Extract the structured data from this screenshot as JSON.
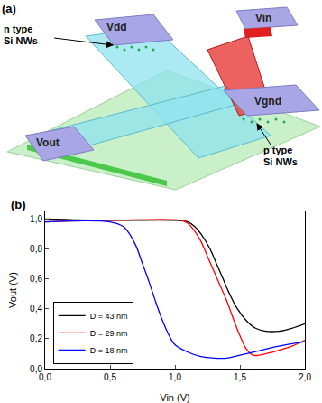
{
  "diagram": {
    "panel_label": "(a)",
    "terminals": [
      "Vdd",
      "Vin",
      "Vgnd",
      "Vout"
    ],
    "n_label": [
      "n type",
      "Si NWs"
    ],
    "p_label": [
      "p type",
      "Si NWs"
    ]
  },
  "chart_data": {
    "type": "line",
    "panel_label": "(b)",
    "x_label": "Vin (V)",
    "y_label": "Vout (V)",
    "xlim": [
      0,
      2.0
    ],
    "ylim": [
      0,
      1.05
    ],
    "xticks": [
      {
        "value": 0,
        "label": "0,0"
      },
      {
        "value": 0.5,
        "label": "0,5"
      },
      {
        "value": 1.0,
        "label": "1,0"
      },
      {
        "value": 1.5,
        "label": "1,5"
      },
      {
        "value": 2.0,
        "label": "2,0"
      }
    ],
    "yticks": [
      {
        "value": 0,
        "label": "0,0"
      },
      {
        "value": 0.2,
        "label": "0,2"
      },
      {
        "value": 0.4,
        "label": "0,4"
      },
      {
        "value": 0.6,
        "label": "0,6"
      },
      {
        "value": 0.8,
        "label": "0,8"
      },
      {
        "value": 1.0,
        "label": "1,0"
      }
    ],
    "legend": "lower left",
    "series": [
      {
        "name": "D = 43 nm",
        "color": "#000000",
        "x": [
          0,
          0.5,
          1.0,
          1.1,
          1.15,
          1.2,
          1.27,
          1.32,
          1.37,
          1.42,
          1.48,
          1.55,
          1.62,
          1.7,
          1.8,
          1.9,
          2.0
        ],
        "values": [
          1.0,
          0.99,
          0.99,
          0.98,
          0.95,
          0.9,
          0.8,
          0.7,
          0.6,
          0.5,
          0.4,
          0.32,
          0.27,
          0.25,
          0.25,
          0.27,
          0.3
        ]
      },
      {
        "name": "D = 29 nm",
        "color": "#ff0000",
        "x": [
          0,
          0.5,
          1.05,
          1.1,
          1.15,
          1.2,
          1.25,
          1.3,
          1.35,
          1.4,
          1.45,
          1.5,
          1.55,
          1.6,
          1.65,
          1.75,
          1.9,
          2.0
        ],
        "values": [
          0.98,
          0.99,
          0.99,
          0.97,
          0.92,
          0.85,
          0.75,
          0.65,
          0.55,
          0.45,
          0.33,
          0.22,
          0.13,
          0.09,
          0.09,
          0.11,
          0.15,
          0.19
        ]
      },
      {
        "name": "D = 18 nm",
        "color": "#0000ff",
        "x": [
          0,
          0.5,
          0.6,
          0.65,
          0.7,
          0.75,
          0.8,
          0.85,
          0.9,
          0.95,
          1.0,
          1.1,
          1.2,
          1.3,
          1.4,
          1.5,
          1.65,
          1.8,
          2.0
        ],
        "values": [
          0.98,
          0.98,
          0.95,
          0.9,
          0.82,
          0.7,
          0.58,
          0.45,
          0.33,
          0.23,
          0.16,
          0.11,
          0.08,
          0.07,
          0.07,
          0.09,
          0.12,
          0.15,
          0.18
        ]
      }
    ]
  }
}
